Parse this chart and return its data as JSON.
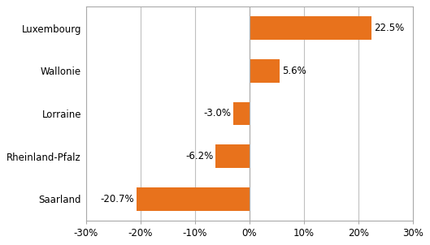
{
  "categories": [
    "Saarland",
    "Rheinland-Pfalz",
    "Lorraine",
    "Wallonie",
    "Luxembourg"
  ],
  "values": [
    -20.7,
    -6.2,
    -3.0,
    5.6,
    22.5
  ],
  "bar_color": "#E8721C",
  "xlim": [
    -30,
    30
  ],
  "xticks": [
    -30,
    -20,
    -10,
    0,
    10,
    20,
    30
  ],
  "xtick_labels": [
    "-30%",
    "-20%",
    "-10%",
    "0%",
    "10%",
    "20%",
    "30%"
  ],
  "data_labels": [
    "-20.7%",
    "-6.2%",
    "-3.0%",
    "5.6%",
    "22.5%"
  ],
  "bar_height": 0.55,
  "background_color": "#ffffff",
  "grid_color": "#c0c0c0",
  "label_fontsize": 8.5,
  "tick_fontsize": 8.5,
  "spine_color": "#aaaaaa"
}
